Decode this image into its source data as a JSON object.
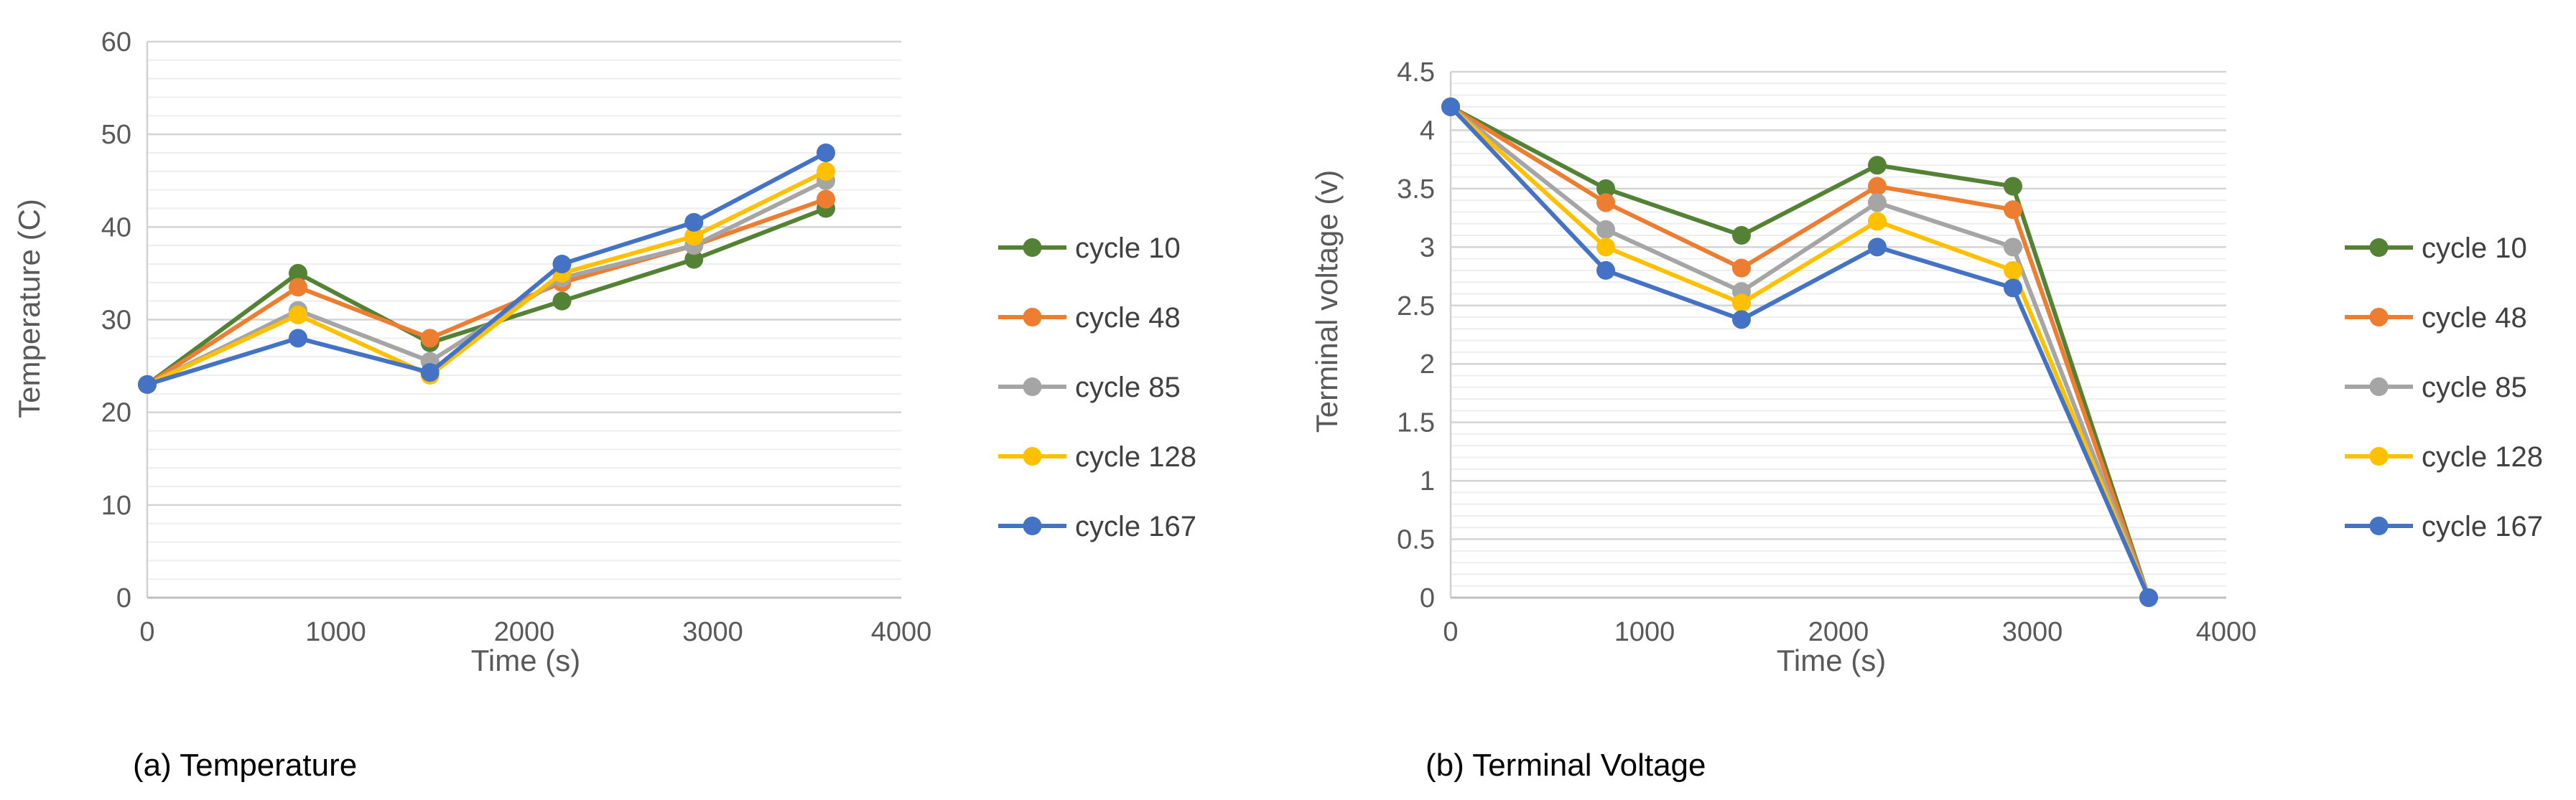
{
  "chart_data": [
    {
      "type": "line",
      "caption": "(a) Temperature",
      "xlabel": "Time (s)",
      "ylabel": "Temperature (C)",
      "xlim": [
        0,
        4000
      ],
      "ylim": [
        0,
        60
      ],
      "xticks": [
        0,
        1000,
        2000,
        3000,
        4000
      ],
      "yticks": [
        0,
        10,
        20,
        30,
        40,
        50,
        60
      ],
      "minor_grid_step": 2,
      "x": [
        0,
        800,
        1500,
        2200,
        2900,
        3600
      ],
      "series": [
        {
          "name": "cycle 10",
          "color": "#548235",
          "values": [
            23,
            35,
            27.5,
            32,
            36.5,
            42
          ]
        },
        {
          "name": "cycle 48",
          "color": "#ED7D31",
          "values": [
            23,
            33.5,
            28,
            34,
            38,
            43
          ]
        },
        {
          "name": "cycle 85",
          "color": "#A5A5A5",
          "values": [
            23,
            31,
            25.5,
            34.5,
            38,
            45
          ]
        },
        {
          "name": "cycle 128",
          "color": "#FFC000",
          "values": [
            23,
            30.5,
            24,
            35,
            39,
            46
          ]
        },
        {
          "name": "cycle 167",
          "color": "#4472C4",
          "values": [
            23,
            28,
            24.3,
            36,
            40.5,
            48
          ]
        }
      ]
    },
    {
      "type": "line",
      "caption": "(b)  Terminal Voltage",
      "xlabel": "Time (s)",
      "ylabel": "Terminal voltage (v)",
      "xlim": [
        0,
        4000
      ],
      "ylim": [
        0,
        4.5
      ],
      "xticks": [
        0,
        1000,
        2000,
        3000,
        4000
      ],
      "yticks": [
        0,
        0.5,
        1,
        1.5,
        2,
        2.5,
        3,
        3.5,
        4,
        4.5
      ],
      "minor_grid_step": 0.1,
      "x": [
        0,
        800,
        1500,
        2200,
        2900,
        3600
      ],
      "series": [
        {
          "name": "cycle 10",
          "color": "#548235",
          "values": [
            4.2,
            3.5,
            3.1,
            3.7,
            3.52,
            0
          ]
        },
        {
          "name": "cycle 48",
          "color": "#ED7D31",
          "values": [
            4.2,
            3.38,
            2.82,
            3.52,
            3.32,
            0
          ]
        },
        {
          "name": "cycle 85",
          "color": "#A5A5A5",
          "values": [
            4.2,
            3.15,
            2.62,
            3.38,
            3.0,
            0
          ]
        },
        {
          "name": "cycle 128",
          "color": "#FFC000",
          "values": [
            4.2,
            3.0,
            2.52,
            3.22,
            2.8,
            0
          ]
        },
        {
          "name": "cycle 167",
          "color": "#4472C4",
          "values": [
            4.2,
            2.8,
            2.38,
            3.0,
            2.65,
            0
          ]
        }
      ]
    }
  ]
}
